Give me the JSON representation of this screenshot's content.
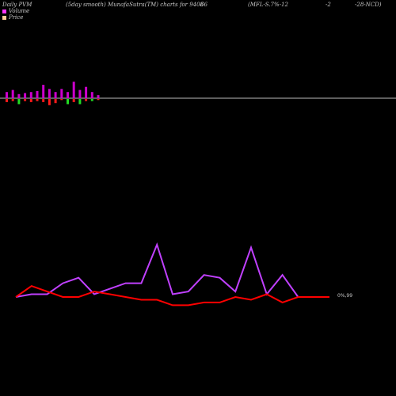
{
  "header": {
    "label_0": "Daily PVM",
    "label_1": "(5day smooth) MunafaSutra(TM) charts for 9408",
    "label_2": "66",
    "label_3": "(MFL-S.7%-12",
    "label_4": "-2",
    "label_5": "-28-NCD)"
  },
  "legend": {
    "volume": "Volume",
    "price": "Price"
  },
  "colors": {
    "background": "#000000",
    "volume_up": "#cc00cc",
    "volume_down": "#ff1a1a",
    "volume_green": "#22dd22",
    "price_line": "#ff0000",
    "pvm_line": "#c040ff",
    "baseline": "#bbbbbb",
    "legend_volume": "#ff33ff",
    "legend_price": "#ffcc99"
  },
  "chart_data": {
    "type": "line",
    "x": [
      1,
      2,
      3,
      4,
      5,
      6,
      7,
      8,
      9,
      10,
      11,
      12,
      13,
      14,
      15,
      16,
      17,
      18,
      19,
      20,
      21
    ],
    "series": [
      {
        "name": "Price",
        "values": [
          1002,
          998,
          1000,
          1002,
          1002,
          1000,
          1001,
          1002,
          1003,
          1003,
          1005,
          1005,
          1004,
          1004,
          1002,
          1003,
          1001,
          1004,
          1002,
          1002,
          1002
        ]
      },
      {
        "values": [
          1002,
          1001,
          1001,
          997,
          995,
          1001,
          999,
          997,
          997,
          983,
          1001,
          1000,
          994,
          995,
          1000,
          984,
          1001,
          994,
          1002,
          1002,
          1002
        ]
      }
    ],
    "volume_bars": [
      {
        "up": 6,
        "down": 3,
        "color": "up"
      },
      {
        "up": 8,
        "down": 2,
        "color": "up"
      },
      {
        "up": 4,
        "down": 5,
        "color": "green"
      },
      {
        "up": 5,
        "down": 2,
        "color": "up"
      },
      {
        "up": 6,
        "down": 3,
        "color": "up"
      },
      {
        "up": 7,
        "down": 2,
        "color": "up"
      },
      {
        "up": 13,
        "down": 3,
        "color": "up"
      },
      {
        "up": 9,
        "down": 6,
        "color": "down"
      },
      {
        "up": 6,
        "down": 4,
        "color": "down"
      },
      {
        "up": 9,
        "down": 1,
        "color": "up"
      },
      {
        "up": 6,
        "down": 5,
        "color": "green"
      },
      {
        "up": 16,
        "down": 3,
        "color": "up"
      },
      {
        "up": 8,
        "down": 5,
        "color": "green"
      },
      {
        "up": 11,
        "down": 2,
        "color": "up"
      },
      {
        "up": 6,
        "down": 2,
        "color": "green"
      },
      {
        "up": 3,
        "down": 1,
        "color": "up"
      }
    ],
    "price_label": "0%,99",
    "grid": false
  }
}
